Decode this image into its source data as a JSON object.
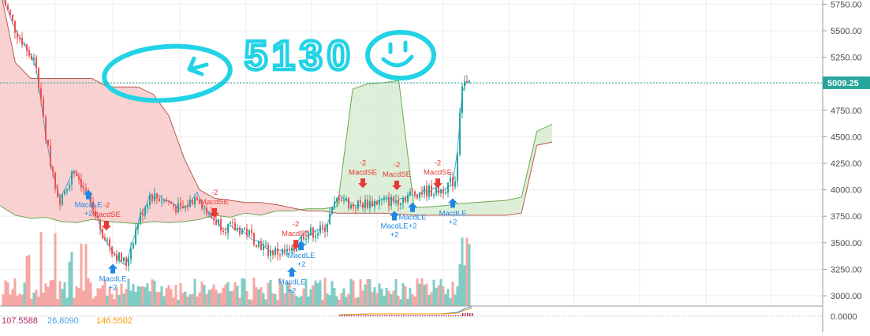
{
  "colors": {
    "up": "#26a69a",
    "down": "#ef5350",
    "volume_up": "#7fcdc5",
    "volume_down": "#f5a7a4",
    "sell_signal": "#e53935",
    "buy_signal": "#1e88e5",
    "cloud_bear": "#f8c9c9",
    "cloud_bull": "#d8ecd2",
    "span_a": "#6ba84f",
    "span_b": "#b85a4e",
    "tenkan": "#4aa3df",
    "annotation": "#22d3e6",
    "price_line": "#26a69a",
    "macd_histogram": "#b0286b"
  },
  "annotation": {
    "text": "5130"
  },
  "price_axis": {
    "ticks": [
      "5750.00",
      "5500.00",
      "5250.00",
      "5000.00",
      "4750.00",
      "4500.00",
      "4250.00",
      "4000.00",
      "3750.00",
      "3500.00",
      "3250.00",
      "3000.00"
    ],
    "current_price": "5009.25",
    "indicator_tick": "0.0000"
  },
  "indicator_values": {
    "v1": "107.5588",
    "v2": "26.8090",
    "v3": "146.5502"
  },
  "chart_data": {
    "type": "candlestick",
    "title": "",
    "ylim": [
      2950,
      5850
    ],
    "current_price": 5009.25,
    "ichimoku_cloud": {
      "span_a": [
        3850,
        3760,
        3730,
        3740,
        3700,
        3690,
        3720,
        3700,
        3690,
        3680,
        3700,
        3690,
        3700,
        3720,
        3760,
        3740,
        3780,
        3760,
        3800,
        3800,
        3820,
        3820,
        3840,
        4950,
        5000,
        5010,
        5030,
        3830,
        3840,
        3850,
        3870,
        3880,
        3890,
        3900,
        3930,
        4550,
        4620
      ],
      "span_b": [
        5900,
        5200,
        5050,
        5050,
        5050,
        5050,
        5050,
        4970,
        4970,
        4970,
        4900,
        4700,
        4300,
        4000,
        3920,
        3900,
        3880,
        3880,
        3860,
        3830,
        3800,
        3800,
        3780,
        3780,
        3780,
        3780,
        3770,
        3760,
        3760,
        3760,
        3760,
        3760,
        3760,
        3760,
        3780,
        4420,
        4450
      ]
    },
    "signals": [
      {
        "type": "buy",
        "label": "MacdLE",
        "qty": "+2",
        "x": 112,
        "price": 4000
      },
      {
        "type": "sell",
        "label": "MacdSE",
        "qty": "-2",
        "x": 135,
        "price": 3580
      },
      {
        "type": "buy",
        "label": "MacdLE",
        "qty": "+2",
        "x": 143,
        "price": 3300
      },
      {
        "type": "sell",
        "label": "MacdSE",
        "qty": "-2",
        "x": 272,
        "price": 3700
      },
      {
        "type": "buy",
        "label": "MacdLE",
        "qty": "+2",
        "x": 370,
        "price": 3270
      },
      {
        "type": "sell",
        "label": "MacdSE",
        "qty": "-2",
        "x": 375,
        "price": 3400
      },
      {
        "type": "buy",
        "label": "MacdLE",
        "qty": "+2",
        "x": 382,
        "price": 3520
      },
      {
        "type": "sell",
        "label": "MacdSE",
        "qty": "-2",
        "x": 460,
        "price": 3980
      },
      {
        "type": "buy",
        "label": "MacdLE",
        "qty": "+2",
        "x": 500,
        "price": 3800
      },
      {
        "type": "sell",
        "label": "MacdSE",
        "qty": "-2",
        "x": 503,
        "price": 3960
      },
      {
        "type": "buy",
        "label": "MacdLE",
        "qty": "+2",
        "x": 523,
        "price": 3880
      },
      {
        "type": "sell",
        "label": "MacdSE",
        "qty": "-2",
        "x": 555,
        "price": 3980
      },
      {
        "type": "buy",
        "label": "MacdLE",
        "qty": "+2",
        "x": 574,
        "price": 3920
      }
    ]
  }
}
